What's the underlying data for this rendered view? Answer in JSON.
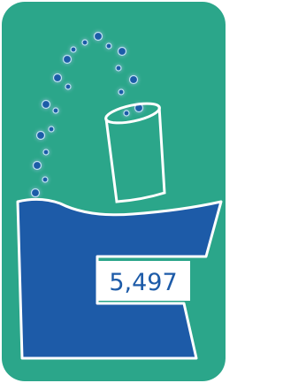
{
  "count_label": "5,497"
}
